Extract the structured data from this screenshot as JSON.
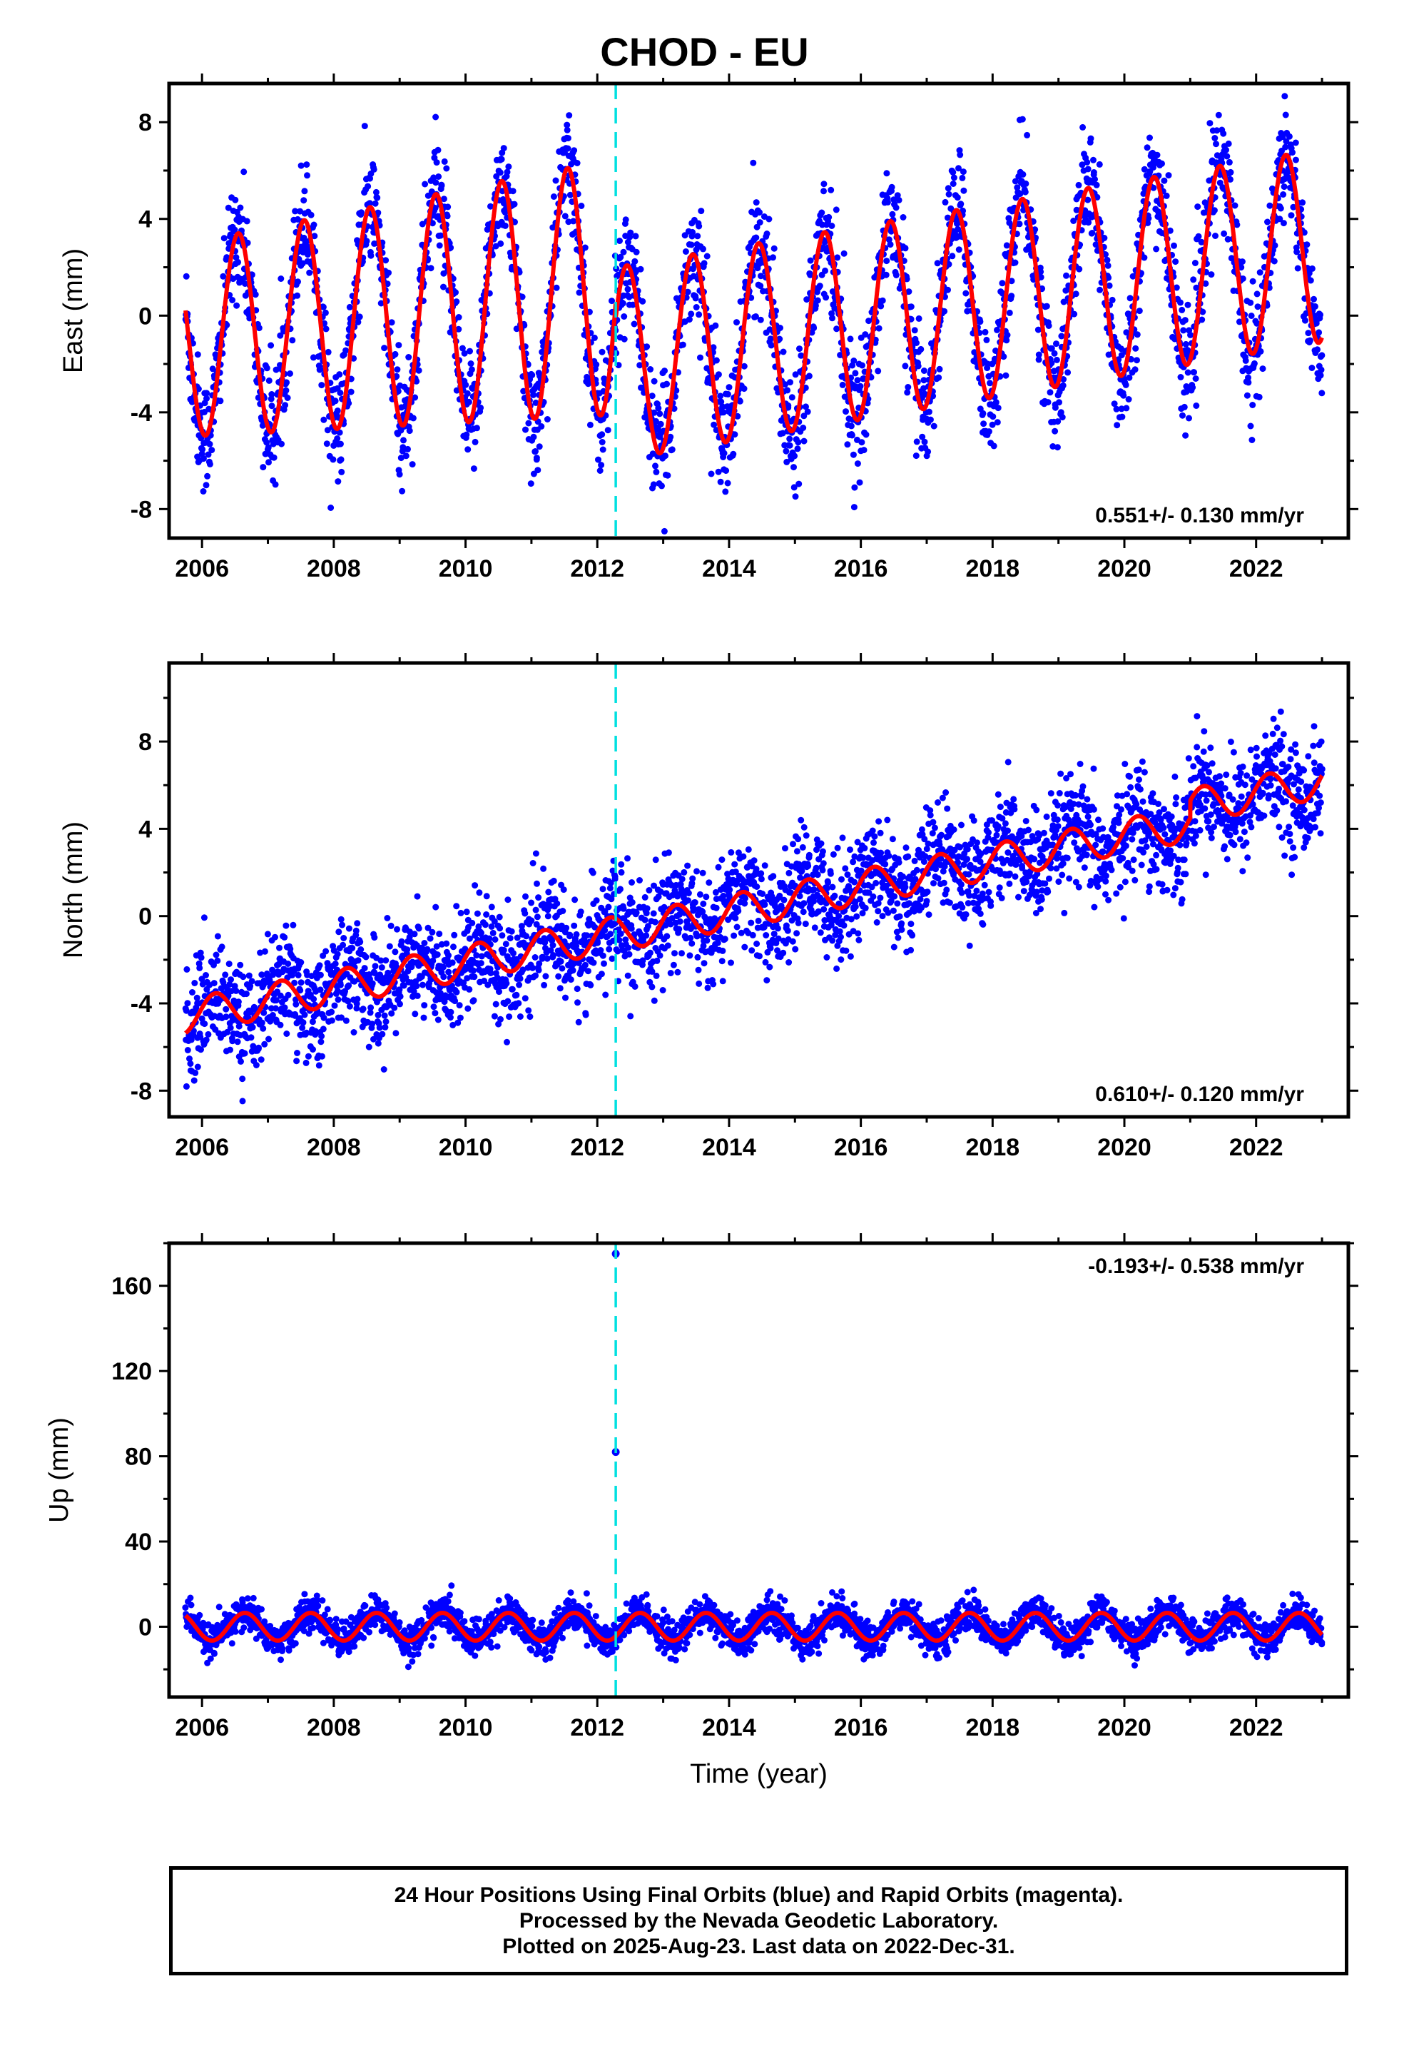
{
  "title": "CHOD - EU",
  "chart_data": [
    {
      "type": "scatter",
      "ylabel": "East (mm)",
      "xlim": [
        2005.5,
        2023.4
      ],
      "ylim": [
        -9.2,
        9.6
      ],
      "xticks": [
        2006,
        2008,
        2010,
        2012,
        2014,
        2016,
        2018,
        2020,
        2022
      ],
      "yticks": [
        -8,
        -4,
        0,
        4,
        8
      ],
      "rate_text": "0.551+/- 0.130 mm/yr",
      "rate_position": "bottom-right",
      "data_start": 2005.75,
      "data_end": 2023.0,
      "offset_epoch": 2012.28,
      "series": [
        {
          "color": "#0000ff",
          "marker": "dot",
          "points": "daily positions"
        },
        {
          "color": "#ff0000",
          "line": "model fit"
        }
      ],
      "model": {
        "seg1": {
          "t0": 2005.8,
          "t1": 2012.28,
          "trend_start": -1.0,
          "trend_end": 1.2,
          "annual_amp": 4.0,
          "annual_amp_growth": 0.05,
          "annual_phase_peak": 0.55
        },
        "seg2": {
          "t0": 2012.28,
          "t1": 2023.0,
          "trend_start": -2.0,
          "trend_end": 2.9,
          "annual_amp": 4.0,
          "annual_phase_peak": 0.45
        },
        "noise": 1.2
      }
    },
    {
      "type": "scatter",
      "ylabel": "North (mm)",
      "xlim": [
        2005.5,
        2023.4
      ],
      "ylim": [
        -9.2,
        11.6
      ],
      "xticks": [
        2006,
        2008,
        2010,
        2012,
        2014,
        2016,
        2018,
        2020,
        2022
      ],
      "yticks": [
        -8,
        -4,
        0,
        4,
        8
      ],
      "rate_text": "0.610+/- 0.120 mm/yr",
      "rate_position": "bottom-right",
      "data_start": 2005.75,
      "data_end": 2023.0,
      "offset_epoch": 2012.28,
      "series": [
        {
          "color": "#0000ff",
          "marker": "dot",
          "points": "daily positions"
        },
        {
          "color": "#ff0000",
          "line": "model fit"
        }
      ],
      "model": {
        "trend_start": -4.6,
        "trend_end": 5.4,
        "step_2021": 0.8,
        "annual_amp": 0.8,
        "annual_phase_peak": 0.2,
        "noise": 1.2
      }
    },
    {
      "type": "scatter",
      "ylabel": "Up (mm)",
      "xlabel": "Time (year)",
      "xlim": [
        2005.5,
        2023.4
      ],
      "ylim": [
        -33,
        180
      ],
      "xticks": [
        2006,
        2008,
        2010,
        2012,
        2014,
        2016,
        2018,
        2020,
        2022
      ],
      "yticks": [
        0,
        40,
        80,
        120,
        160
      ],
      "rate_text": "-0.193+/- 0.538 mm/yr",
      "rate_position": "top-right",
      "data_start": 2005.75,
      "data_end": 2023.0,
      "offset_epoch": 2012.28,
      "outliers": [
        {
          "x": 2012.28,
          "y": 175
        },
        {
          "x": 2012.28,
          "y": 82
        }
      ],
      "series": [
        {
          "color": "#0000ff",
          "marker": "dot",
          "points": "daily positions"
        },
        {
          "color": "#ff0000",
          "line": "model fit"
        }
      ],
      "model": {
        "trend_start": 0,
        "trend_end": 0,
        "annual_amp": 6.5,
        "annual_phase_peak": 0.65,
        "noise": 4.0
      }
    }
  ],
  "footer": {
    "line1": "24 Hour Positions Using Final Orbits (blue) and Rapid Orbits (magenta).",
    "line2": "Processed by the Nevada Geodetic Laboratory.",
    "line3": "Plotted on 2025-Aug-23. Last data on 2022-Dec-31."
  }
}
